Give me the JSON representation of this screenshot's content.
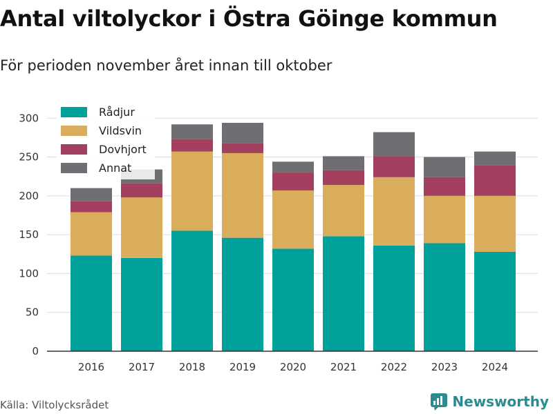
{
  "title": "Antal viltolyckor i Östra Göinge kommun",
  "subtitle": "För perioden november året innan till oktober",
  "source": "Källa: Viltolycksrådet",
  "brand": {
    "name": "Newsworthy",
    "icon": "newsworthy-logo-icon"
  },
  "colors": {
    "Rådjur": "#00a19a",
    "Vildsvin": "#d9ad5b",
    "Dovhjort": "#a33f5f",
    "Annat": "#6e6e73",
    "grid": "#dcdcdc",
    "axis": "#333333",
    "brand": "#2d8a8e"
  },
  "chart_data": {
    "type": "bar",
    "stacked": true,
    "categories": [
      "2016",
      "2017",
      "2018",
      "2019",
      "2020",
      "2021",
      "2022",
      "2023",
      "2024"
    ],
    "series": [
      {
        "name": "Rådjur",
        "values": [
          123,
          120,
          155,
          146,
          132,
          148,
          136,
          139,
          128
        ]
      },
      {
        "name": "Vildsvin",
        "values": [
          56,
          78,
          102,
          109,
          75,
          66,
          88,
          61,
          72
        ]
      },
      {
        "name": "Dovhjort",
        "values": [
          14,
          18,
          16,
          13,
          23,
          19,
          27,
          24,
          39
        ]
      },
      {
        "name": "Annat",
        "values": [
          17,
          18,
          19,
          26,
          14,
          18,
          31,
          26,
          18
        ]
      }
    ],
    "ylim": [
      0,
      310
    ],
    "yticks": [
      0,
      50,
      100,
      150,
      200,
      250,
      300
    ],
    "grid": true,
    "legend": "top-left"
  }
}
